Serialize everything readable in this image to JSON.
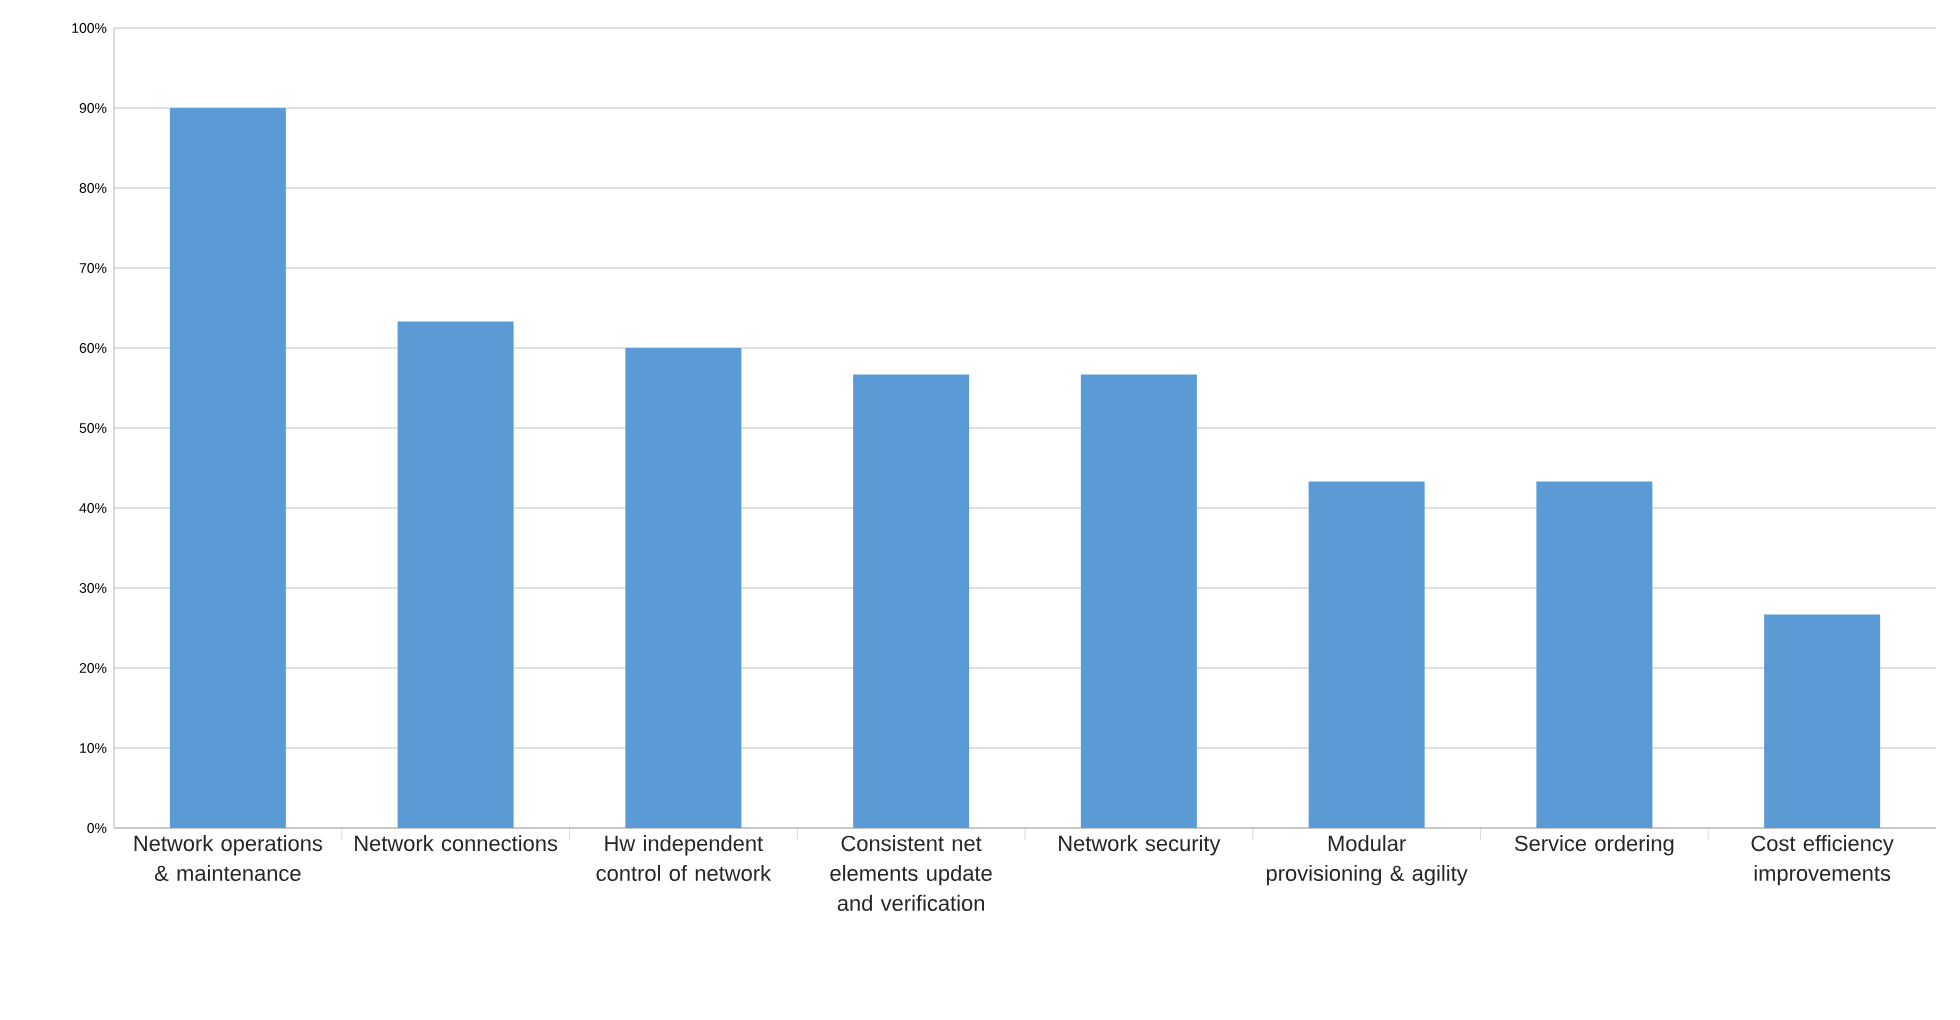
{
  "chart_data": {
    "type": "bar",
    "categories": [
      "Network operations & maintenance",
      "Network connections",
      "Hw independent control of network",
      "Consistent net elements update and verification",
      "Network security",
      "Modular provisioning & agility",
      "Service ordering",
      "Cost efficiency improvements"
    ],
    "values": [
      90,
      63.3,
      60,
      56.7,
      56.7,
      43.3,
      43.3,
      26.7
    ],
    "color": "#5b9bd5",
    "ylim": [
      0,
      100
    ],
    "yticks": [
      {
        "value": 0,
        "label": "0%"
      },
      {
        "value": 10,
        "label": "10%"
      },
      {
        "value": 20,
        "label": "20%"
      },
      {
        "value": 30,
        "label": "30%"
      },
      {
        "value": 40,
        "label": "40%"
      },
      {
        "value": 50,
        "label": "50%"
      },
      {
        "value": 60,
        "label": "60%"
      },
      {
        "value": 70,
        "label": "70%"
      },
      {
        "value": 80,
        "label": "80%"
      },
      {
        "value": 90,
        "label": "90%"
      },
      {
        "value": 100,
        "label": "100%"
      }
    ],
    "grid": "y"
  }
}
